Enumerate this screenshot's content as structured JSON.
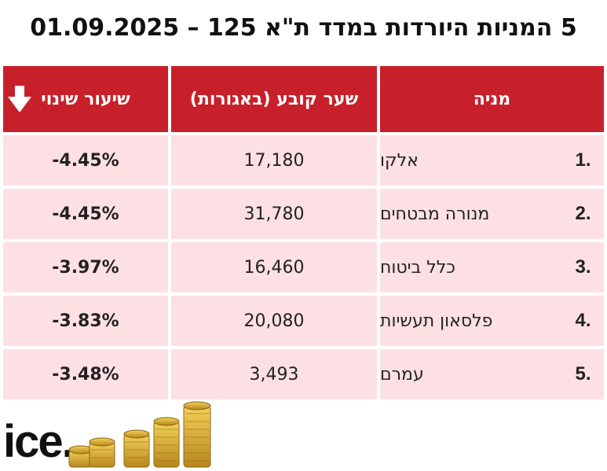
{
  "title": "5 המניות היורדות במדד ת\"א 125 – 01.09.2025",
  "headers": {
    "name": "מניה",
    "price": "שער קובע (באגורות)",
    "change": "שיעור שינוי"
  },
  "rows": [
    {
      "rank": "1.",
      "name": "אלקו",
      "price": "17,180",
      "change": "-4.45%"
    },
    {
      "rank": "2.",
      "name": "מנורה מבטחים",
      "price": "31,780",
      "change": "-4.45%"
    },
    {
      "rank": "3.",
      "name": "כלל ביטוח",
      "price": "16,460",
      "change": "-3.97%"
    },
    {
      "rank": "4.",
      "name": "פלסאון תעשיות",
      "price": "20,080",
      "change": "-3.83%"
    },
    {
      "rank": "5.",
      "name": "עמרם",
      "price": "3,493",
      "change": "-3.48%"
    }
  ],
  "logo": {
    "text": "ice."
  },
  "icons": {
    "sort": "down-arrow-icon",
    "decoration": "coins-icon"
  },
  "colors": {
    "accent": "#c8202a",
    "row_bg": "#fde0e4"
  }
}
